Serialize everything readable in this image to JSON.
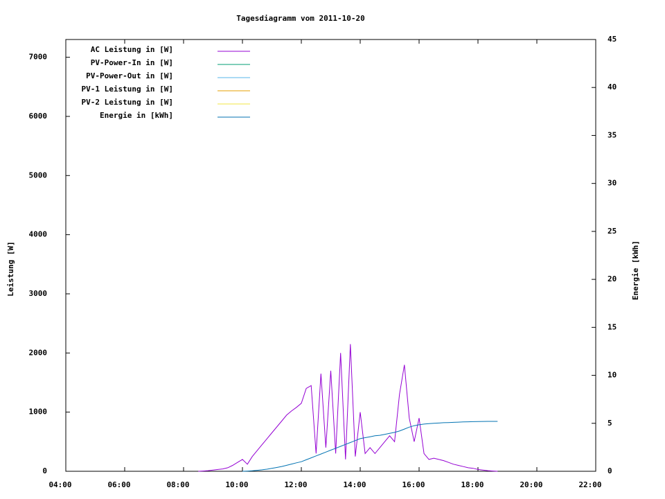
{
  "chart_data": {
    "type": "line",
    "title": "Tagesdiagramm vom 2011-10-20",
    "ylabel": "Leistung [W]",
    "y2label": "Energie [kWh]",
    "x": [
      "08:30",
      "08:40",
      "08:50",
      "09:00",
      "09:10",
      "09:20",
      "09:30",
      "09:40",
      "09:50",
      "10:00",
      "10:10",
      "10:20",
      "10:30",
      "10:40",
      "10:50",
      "11:00",
      "11:10",
      "11:20",
      "11:30",
      "11:40",
      "11:50",
      "12:00",
      "12:10",
      "12:20",
      "12:30",
      "12:40",
      "12:50",
      "13:00",
      "13:10",
      "13:20",
      "13:30",
      "13:40",
      "13:50",
      "14:00",
      "14:10",
      "14:20",
      "14:30",
      "14:40",
      "14:50",
      "15:00",
      "15:10",
      "15:20",
      "15:30",
      "15:40",
      "15:50",
      "16:00",
      "16:10",
      "16:20",
      "16:30",
      "16:40",
      "16:50",
      "17:00",
      "17:10",
      "17:20",
      "17:30",
      "17:40",
      "17:50",
      "18:00",
      "18:10",
      "18:20",
      "18:30",
      "18:40"
    ],
    "series": [
      {
        "name": "AC Leistung in [W]",
        "color": "#9400d3",
        "values": [
          0,
          5,
          10,
          20,
          30,
          40,
          60,
          100,
          150,
          200,
          120,
          250,
          350,
          450,
          550,
          650,
          750,
          850,
          950,
          1020,
          1080,
          1150,
          1400,
          1450,
          300,
          1650,
          400,
          1700,
          300,
          2000,
          200,
          2150,
          250,
          1000,
          300,
          400,
          300,
          400,
          500,
          600,
          500,
          1300,
          1800,
          900,
          500,
          900,
          300,
          200,
          220,
          200,
          180,
          150,
          120,
          100,
          80,
          60,
          50,
          30,
          20,
          10,
          5,
          0
        ]
      },
      {
        "name": "PV-Power-In in [W]",
        "color": "#009e73",
        "values": [
          null,
          null,
          null,
          null,
          null,
          null,
          null,
          null,
          null,
          null,
          null,
          null,
          null,
          null,
          null,
          null,
          null,
          null,
          null,
          null,
          null,
          null,
          null,
          null,
          null,
          null,
          null,
          null,
          null,
          null,
          null,
          null,
          null,
          null,
          null,
          null,
          null,
          null,
          null,
          null,
          null,
          null,
          null,
          null,
          null,
          null,
          null,
          null,
          null,
          null,
          null,
          null,
          null,
          null,
          null,
          null,
          null,
          null,
          null,
          null,
          null,
          null
        ]
      },
      {
        "name": "PV-Power-Out in [W]",
        "color": "#56b4e9",
        "values": [
          null,
          null,
          null,
          null,
          null,
          null,
          null,
          null,
          null,
          null,
          null,
          null,
          null,
          null,
          null,
          null,
          null,
          null,
          null,
          null,
          null,
          null,
          null,
          null,
          null,
          null,
          null,
          null,
          null,
          null,
          null,
          null,
          null,
          null,
          null,
          null,
          null,
          null,
          null,
          null,
          null,
          null,
          null,
          null,
          null,
          null,
          null,
          null,
          null,
          null,
          null,
          null,
          null,
          null,
          null,
          null,
          null,
          null,
          null,
          null,
          null,
          null
        ]
      },
      {
        "name": "PV-1 Leistung in [W]",
        "color": "#e69f00",
        "values": [
          null,
          null,
          null,
          null,
          null,
          null,
          null,
          null,
          null,
          null,
          null,
          null,
          null,
          null,
          null,
          null,
          null,
          null,
          null,
          null,
          null,
          null,
          null,
          null,
          null,
          null,
          null,
          null,
          null,
          null,
          null,
          null,
          null,
          null,
          null,
          null,
          null,
          null,
          null,
          null,
          null,
          null,
          null,
          null,
          null,
          null,
          null,
          null,
          null,
          null,
          null,
          null,
          null,
          null,
          null,
          null,
          null,
          null,
          null,
          null,
          null,
          null
        ]
      },
      {
        "name": "PV-2 Leistung in [W]",
        "color": "#f0e442",
        "values": [
          null,
          null,
          null,
          null,
          null,
          null,
          null,
          null,
          null,
          null,
          null,
          null,
          null,
          null,
          null,
          null,
          null,
          null,
          null,
          null,
          null,
          null,
          null,
          null,
          null,
          null,
          null,
          null,
          null,
          null,
          null,
          null,
          null,
          null,
          null,
          null,
          null,
          null,
          null,
          null,
          null,
          null,
          null,
          null,
          null,
          null,
          null,
          null,
          null,
          null,
          null,
          null,
          null,
          null,
          null,
          null,
          null,
          null,
          null,
          null,
          null,
          null
        ]
      },
      {
        "name": "Energie in [kWh]",
        "color": "#0072b2",
        "axis": "y2",
        "values": [
          null,
          null,
          null,
          null,
          null,
          null,
          null,
          null,
          null,
          0,
          0.02,
          0.05,
          0.1,
          0.15,
          0.22,
          0.3,
          0.4,
          0.5,
          0.62,
          0.75,
          0.88,
          1.0,
          1.2,
          1.4,
          1.6,
          1.8,
          2.0,
          2.2,
          2.4,
          2.6,
          2.8,
          3.0,
          3.2,
          3.4,
          3.5,
          3.6,
          3.7,
          3.75,
          3.85,
          3.95,
          4.05,
          4.2,
          4.4,
          4.6,
          4.75,
          4.85,
          4.92,
          4.97,
          5.0,
          5.03,
          5.06,
          5.08,
          5.1,
          5.12,
          5.14,
          5.16,
          5.17,
          5.18,
          5.19,
          5.2,
          5.2,
          5.2
        ]
      }
    ],
    "xlim": [
      "04:00",
      "22:00"
    ],
    "xticks": [
      "04:00",
      "06:00",
      "08:00",
      "10:00",
      "12:00",
      "14:00",
      "16:00",
      "18:00",
      "20:00",
      "22:00"
    ],
    "ylim": [
      0,
      7300
    ],
    "yticks": [
      0,
      1000,
      2000,
      3000,
      4000,
      5000,
      6000,
      7000
    ],
    "y2lim": [
      0,
      45
    ],
    "y2ticks": [
      0,
      5,
      10,
      15,
      20,
      25,
      30,
      35,
      40,
      45
    ],
    "legend": "upper left",
    "grid": false
  }
}
